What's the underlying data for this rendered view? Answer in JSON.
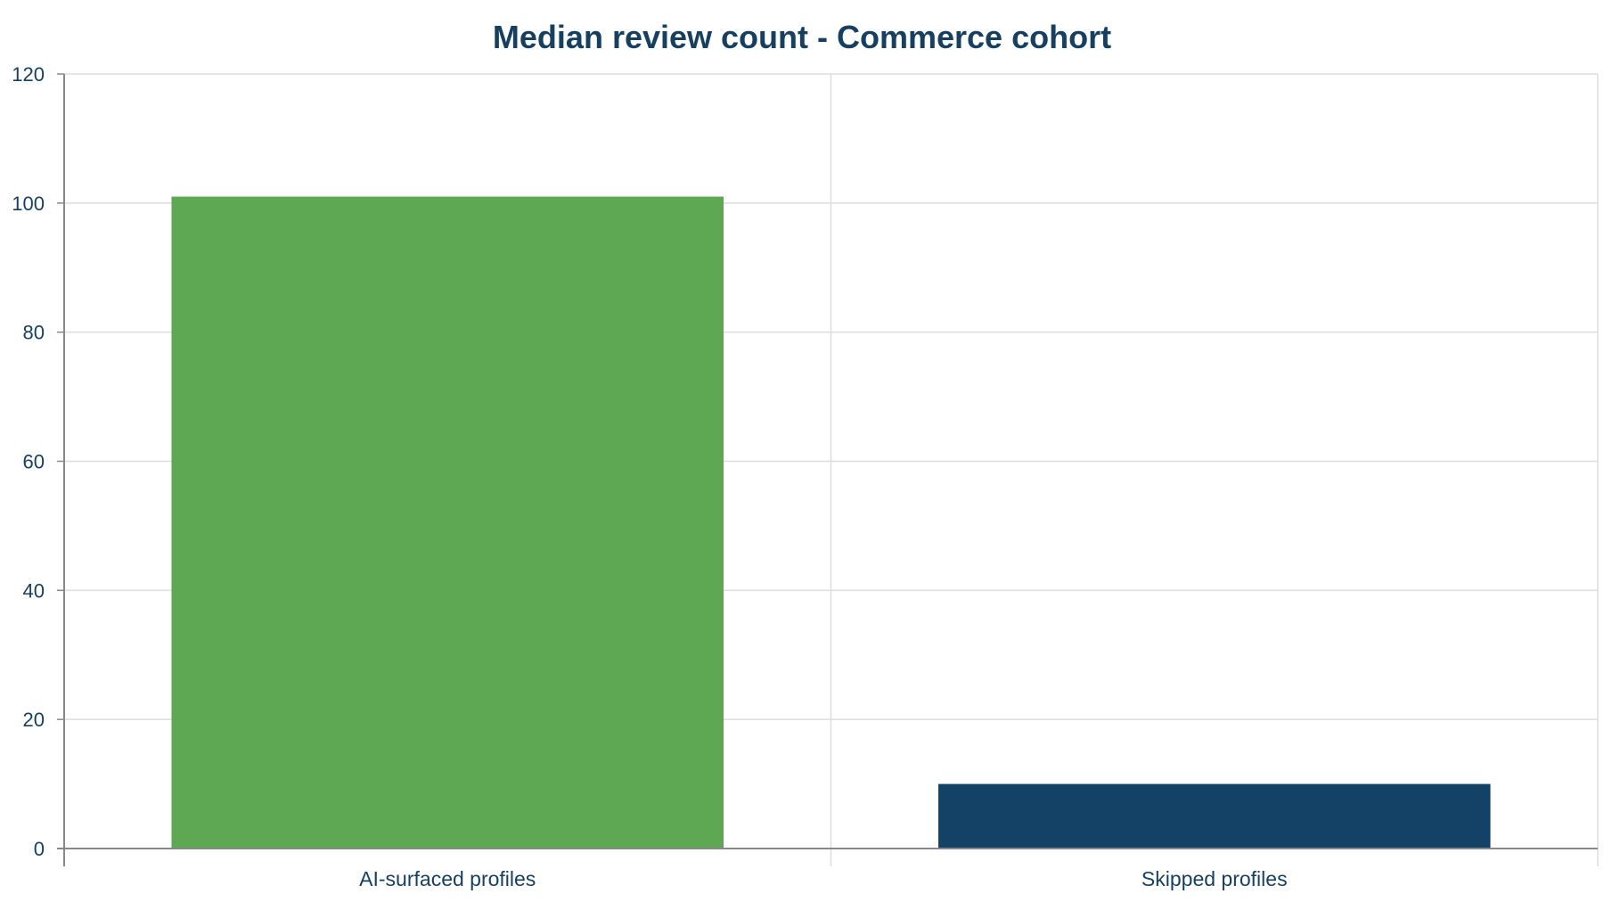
{
  "chart_data": {
    "type": "bar",
    "title": "Median review count - Commerce cohort",
    "xlabel": "",
    "ylabel": "",
    "categories": [
      "AI-surfaced profiles",
      "Skipped profiles"
    ],
    "values": [
      101,
      10
    ],
    "bar_colors": [
      "#5ea853",
      "#144266"
    ],
    "ylim": [
      0,
      120
    ],
    "yticks": [
      0,
      20,
      40,
      60,
      80,
      100,
      120
    ],
    "grid": true,
    "legend": "none"
  },
  "colors": {
    "text": "#173f5f",
    "grid": "#dddddd",
    "axis": "#888888"
  }
}
